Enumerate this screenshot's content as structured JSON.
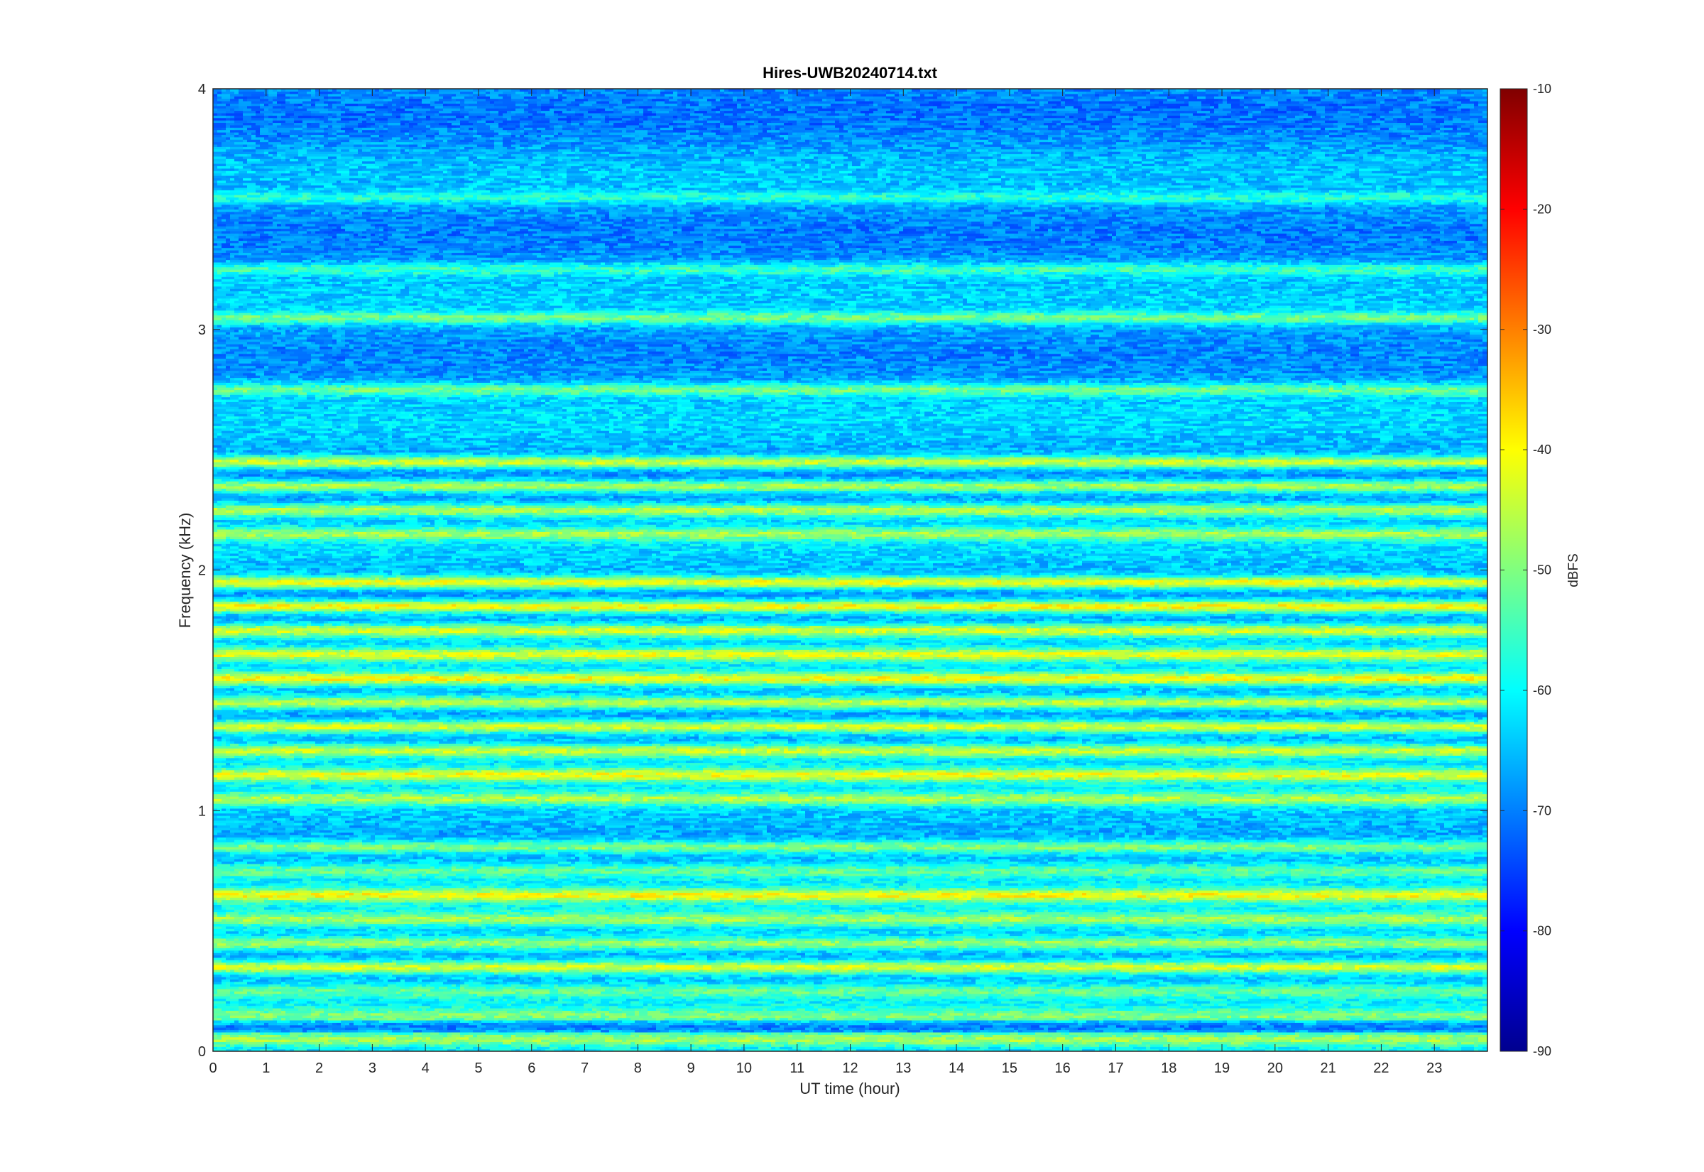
{
  "chart_data": {
    "type": "heatmap",
    "title": "Hires-UWB20240714.txt",
    "xlabel": "UT time (hour)",
    "ylabel": "Frequency (kHz)",
    "xlim": [
      0,
      24
    ],
    "ylim": [
      0,
      4
    ],
    "x_ticks": [
      "0",
      "1",
      "2",
      "3",
      "4",
      "5",
      "6",
      "7",
      "8",
      "9",
      "10",
      "11",
      "12",
      "13",
      "14",
      "15",
      "16",
      "17",
      "18",
      "19",
      "20",
      "21",
      "22",
      "23"
    ],
    "y_ticks": [
      "0",
      "1",
      "2",
      "3",
      "4"
    ],
    "colorbar": {
      "label": "dBFS",
      "range": [
        -90,
        -10
      ],
      "ticks": [
        "-10",
        "-20",
        "-30",
        "-40",
        "-50",
        "-60",
        "-70",
        "-80",
        "-90"
      ],
      "colormap": "jet"
    },
    "bands": [
      {
        "freq_khz": 0.05,
        "level_dbfs": -47
      },
      {
        "freq_khz": 0.1,
        "level_dbfs": -70
      },
      {
        "freq_khz": 0.15,
        "level_dbfs": -50
      },
      {
        "freq_khz": 0.25,
        "level_dbfs": -52
      },
      {
        "freq_khz": 0.35,
        "level_dbfs": -43
      },
      {
        "freq_khz": 0.45,
        "level_dbfs": -48
      },
      {
        "freq_khz": 0.55,
        "level_dbfs": -47
      },
      {
        "freq_khz": 0.65,
        "level_dbfs": -40
      },
      {
        "freq_khz": 0.75,
        "level_dbfs": -52
      },
      {
        "freq_khz": 0.85,
        "level_dbfs": -50
      },
      {
        "freq_khz": 1.05,
        "level_dbfs": -46
      },
      {
        "freq_khz": 1.15,
        "level_dbfs": -41
      },
      {
        "freq_khz": 1.25,
        "level_dbfs": -44
      },
      {
        "freq_khz": 1.35,
        "level_dbfs": -43
      },
      {
        "freq_khz": 1.45,
        "level_dbfs": -45
      },
      {
        "freq_khz": 1.55,
        "level_dbfs": -40
      },
      {
        "freq_khz": 1.65,
        "level_dbfs": -42
      },
      {
        "freq_khz": 1.75,
        "level_dbfs": -43
      },
      {
        "freq_khz": 1.85,
        "level_dbfs": -40
      },
      {
        "freq_khz": 1.95,
        "level_dbfs": -41
      },
      {
        "freq_khz": 2.15,
        "level_dbfs": -47
      },
      {
        "freq_khz": 2.25,
        "level_dbfs": -46
      },
      {
        "freq_khz": 2.35,
        "level_dbfs": -47
      },
      {
        "freq_khz": 2.45,
        "level_dbfs": -44
      },
      {
        "freq_khz": 2.75,
        "level_dbfs": -51
      },
      {
        "freq_khz": 3.05,
        "level_dbfs": -51
      },
      {
        "freq_khz": 3.25,
        "level_dbfs": -55
      },
      {
        "freq_khz": 3.55,
        "level_dbfs": -57
      }
    ]
  }
}
